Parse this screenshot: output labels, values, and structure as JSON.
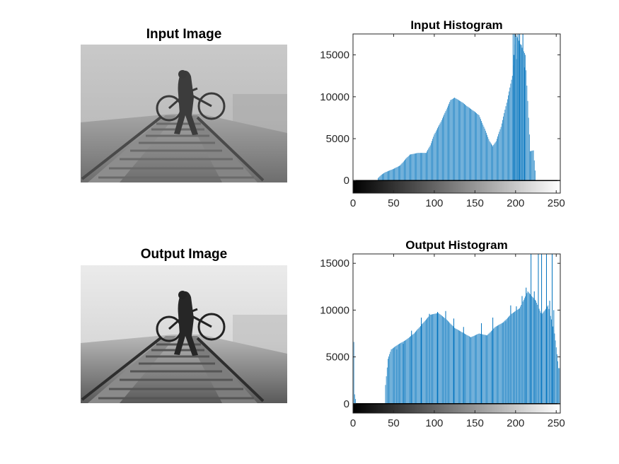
{
  "figure": {
    "input_image_title": "Input Image",
    "output_image_title": "Output Image",
    "input_hist_title": "Input Histogram",
    "output_hist_title": "Output Histogram"
  },
  "colors": {
    "bar": "#0072BD",
    "axis": "#262626"
  },
  "chart_data": [
    {
      "type": "bar",
      "title": "Input Histogram",
      "xlim": [
        0,
        255
      ],
      "ylim": [
        -1500,
        17500
      ],
      "xticks": [
        0,
        50,
        100,
        150,
        200,
        250
      ],
      "yticks": [
        0,
        5000,
        10000,
        15000
      ],
      "colorbar": "grayscale 0-255",
      "envelope": [
        [
          0,
          0
        ],
        [
          30,
          0
        ],
        [
          31,
          300
        ],
        [
          35,
          700
        ],
        [
          40,
          1000
        ],
        [
          50,
          1400
        ],
        [
          58,
          1800
        ],
        [
          65,
          2600
        ],
        [
          70,
          3100
        ],
        [
          80,
          3300
        ],
        [
          90,
          3300
        ],
        [
          95,
          4200
        ],
        [
          100,
          5500
        ],
        [
          108,
          7000
        ],
        [
          115,
          8500
        ],
        [
          120,
          9600
        ],
        [
          125,
          9900
        ],
        [
          130,
          9600
        ],
        [
          135,
          9300
        ],
        [
          140,
          8900
        ],
        [
          150,
          8200
        ],
        [
          155,
          7800
        ],
        [
          162,
          6200
        ],
        [
          168,
          4700
        ],
        [
          172,
          4100
        ],
        [
          176,
          4700
        ],
        [
          182,
          6400
        ],
        [
          190,
          9700
        ],
        [
          196,
          12500
        ],
        [
          200,
          17500
        ],
        [
          205,
          16500
        ],
        [
          212,
          15000
        ],
        [
          215,
          9500
        ],
        [
          218,
          3500
        ],
        [
          222,
          3600
        ],
        [
          225,
          0
        ],
        [
          255,
          0
        ]
      ],
      "spikes": [
        [
          197,
          17500
        ],
        [
          199,
          17500
        ],
        [
          201,
          14500
        ],
        [
          203,
          17500
        ],
        [
          205,
          17500
        ],
        [
          207,
          16200
        ],
        [
          209,
          17500
        ],
        [
          211,
          13500
        ]
      ]
    },
    {
      "type": "bar",
      "title": "Output Histogram",
      "xlim": [
        0,
        255
      ],
      "ylim": [
        -1000,
        16000
      ],
      "xticks": [
        0,
        50,
        100,
        150,
        200,
        250
      ],
      "yticks": [
        0,
        5000,
        10000,
        15000
      ],
      "colorbar": "grayscale 0-255",
      "envelope": [
        [
          0,
          0
        ],
        [
          1,
          6600
        ],
        [
          2,
          1000
        ],
        [
          4,
          0
        ],
        [
          39,
          0
        ],
        [
          40,
          2000
        ],
        [
          43,
          4800
        ],
        [
          47,
          5800
        ],
        [
          55,
          6300
        ],
        [
          65,
          6800
        ],
        [
          75,
          7500
        ],
        [
          85,
          8500
        ],
        [
          95,
          9500
        ],
        [
          105,
          9700
        ],
        [
          115,
          9000
        ],
        [
          125,
          8100
        ],
        [
          135,
          7600
        ],
        [
          145,
          7100
        ],
        [
          155,
          7500
        ],
        [
          165,
          7300
        ],
        [
          175,
          8200
        ],
        [
          185,
          8700
        ],
        [
          195,
          9600
        ],
        [
          205,
          10200
        ],
        [
          215,
          12000
        ],
        [
          225,
          11000
        ],
        [
          232,
          9500
        ],
        [
          240,
          10500
        ],
        [
          248,
          7500
        ],
        [
          253,
          3800
        ],
        [
          255,
          3800
        ]
      ],
      "spikes": [
        [
          54,
          5800
        ],
        [
          62,
          6400
        ],
        [
          72,
          7800
        ],
        [
          84,
          9200
        ],
        [
          94,
          9600
        ],
        [
          104,
          9800
        ],
        [
          114,
          9900
        ],
        [
          124,
          9100
        ],
        [
          136,
          8200
        ],
        [
          158,
          8600
        ],
        [
          172,
          9200
        ],
        [
          188,
          8800
        ],
        [
          194,
          10500
        ],
        [
          201,
          10400
        ],
        [
          208,
          11500
        ],
        [
          213,
          12400
        ],
        [
          219,
          16000
        ],
        [
          223,
          12000
        ],
        [
          228,
          16000
        ],
        [
          232,
          16000
        ],
        [
          238,
          16000
        ],
        [
          242,
          11000
        ],
        [
          245,
          16000
        ],
        [
          247,
          10000
        ]
      ]
    }
  ]
}
